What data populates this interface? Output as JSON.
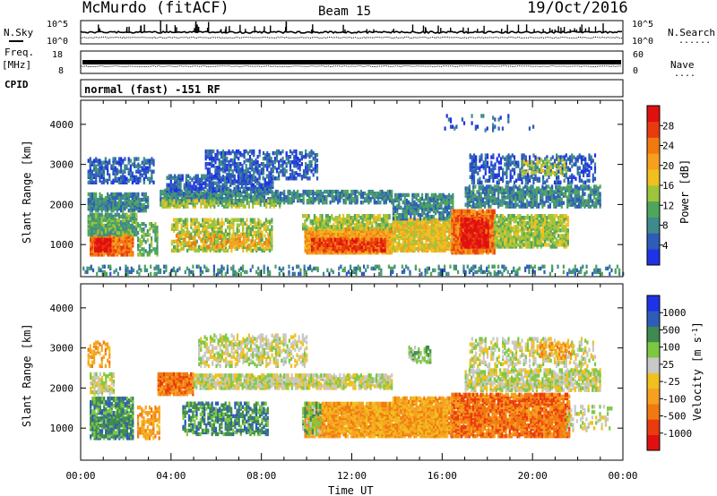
{
  "header": {
    "title": "McMurdo (fitACF)",
    "beam": "Beam 15",
    "date": "19/Oct/2016"
  },
  "strip_labels": {
    "nsky": "N.Sky",
    "nsearch": "N.Search",
    "freq": "Freq.",
    "mhz": "[MHz]",
    "nave": "Nave",
    "cpid": "CPID",
    "dots": "......",
    "dots_short": "...."
  },
  "strip_ticks": {
    "nsky_top": "10^5",
    "nsky_bottom": "10^0",
    "freq_top": "18",
    "freq_bottom": "8",
    "nave_top": "60",
    "nave_bottom": "0"
  },
  "cpid_text": "normal (fast) -151 RF",
  "xaxis": {
    "label": "Time UT",
    "ticks": [
      "00:00",
      "04:00",
      "08:00",
      "12:00",
      "16:00",
      "20:00",
      "00:00"
    ],
    "minor_per_hour": 1
  },
  "colors": {
    "power": [
      "#1f33e6",
      "#2e5cb8",
      "#3f8a8a",
      "#4fa65a",
      "#9ec43b",
      "#f0c020",
      "#f7a020",
      "#f07a10",
      "#ea3a10",
      "#e01010"
    ],
    "velocity": [
      "#e01010",
      "#ea3a10",
      "#f07a10",
      "#f7a020",
      "#f0c020",
      "#c8c8c8",
      "#7dc843",
      "#3f8a4f",
      "#2e5cb8",
      "#1f33e6"
    ]
  },
  "chart_data": [
    {
      "type": "heatmap",
      "name": "power",
      "ylabel": "Slant Range [km]",
      "ylim": [
        200,
        4600
      ],
      "yticks": [
        "1000",
        "2000",
        "3000",
        "4000"
      ],
      "xlim_hours": [
        0,
        24
      ],
      "colorbar": {
        "label": "Power [dB]",
        "ticks": [
          "4",
          "8",
          "12",
          "16",
          "20",
          "24",
          "28"
        ],
        "range": [
          0,
          32
        ]
      },
      "regions": [
        {
          "t0": 0.4,
          "t1": 2.3,
          "r0": 700,
          "r1": 1300,
          "lv": 7,
          "d": 0.9
        },
        {
          "t0": 0.6,
          "t1": 1.3,
          "r0": 800,
          "r1": 1100,
          "lv": 9,
          "d": 0.9
        },
        {
          "t0": 0.3,
          "t1": 2.5,
          "r0": 1200,
          "r1": 1700,
          "lv": 3,
          "d": 0.8
        },
        {
          "t0": 0.3,
          "t1": 3.0,
          "r0": 1800,
          "r1": 2250,
          "lv": 2,
          "d": 0.75
        },
        {
          "t0": 0.3,
          "t1": 3.2,
          "r0": 2500,
          "r1": 3100,
          "lv": 1,
          "d": 0.5
        },
        {
          "t0": 2.5,
          "t1": 3.4,
          "r0": 700,
          "r1": 1500,
          "lv": 3,
          "d": 0.45
        },
        {
          "t0": 3.5,
          "t1": 8.8,
          "r0": 2000,
          "r1": 2300,
          "lv": 2,
          "d": 0.8
        },
        {
          "t0": 3.5,
          "t1": 8.8,
          "r0": 1900,
          "r1": 2050,
          "lv": 4,
          "d": 0.5
        },
        {
          "t0": 3.7,
          "t1": 8.5,
          "r0": 2300,
          "r1": 2700,
          "lv": 1,
          "d": 0.55
        },
        {
          "t0": 4.0,
          "t1": 8.5,
          "r0": 800,
          "r1": 1600,
          "lv": 4,
          "d": 0.5
        },
        {
          "t0": 4.2,
          "t1": 8.3,
          "r0": 900,
          "r1": 1200,
          "lv": 6,
          "d": 0.3
        },
        {
          "t0": 5.5,
          "t1": 10.5,
          "r0": 2600,
          "r1": 3300,
          "lv": 1,
          "d": 0.45
        },
        {
          "t0": 8.8,
          "t1": 13.8,
          "r0": 2000,
          "r1": 2300,
          "lv": 2,
          "d": 0.6
        },
        {
          "t0": 9.9,
          "t1": 13.8,
          "r0": 750,
          "r1": 1350,
          "lv": 6,
          "d": 0.95
        },
        {
          "t0": 10.2,
          "t1": 13.5,
          "r0": 800,
          "r1": 1100,
          "lv": 8,
          "d": 0.75
        },
        {
          "t0": 9.8,
          "t1": 14.2,
          "r0": 1350,
          "r1": 1700,
          "lv": 4,
          "d": 0.6
        },
        {
          "t0": 13.8,
          "t1": 16.5,
          "r0": 800,
          "r1": 1600,
          "lv": 5,
          "d": 0.8
        },
        {
          "t0": 13.8,
          "t1": 16.5,
          "r0": 1600,
          "r1": 2200,
          "lv": 2,
          "d": 0.6
        },
        {
          "t0": 16.4,
          "t1": 18.3,
          "r0": 750,
          "r1": 1800,
          "lv": 7,
          "d": 0.95
        },
        {
          "t0": 16.8,
          "t1": 18.0,
          "r0": 900,
          "r1": 1600,
          "lv": 9,
          "d": 0.75
        },
        {
          "t0": 18.3,
          "t1": 21.6,
          "r0": 900,
          "r1": 1700,
          "lv": 4,
          "d": 0.7
        },
        {
          "t0": 17.0,
          "t1": 23.0,
          "r0": 1900,
          "r1": 2400,
          "lv": 2,
          "d": 0.6
        },
        {
          "t0": 17.2,
          "t1": 22.8,
          "r0": 2500,
          "r1": 3200,
          "lv": 1,
          "d": 0.35
        },
        {
          "t0": 19.5,
          "t1": 21.5,
          "r0": 2700,
          "r1": 3100,
          "lv": 4,
          "d": 0.35
        },
        {
          "t0": 16.0,
          "t1": 20.0,
          "r0": 3800,
          "r1": 4200,
          "lv": 1,
          "d": 0.05
        },
        {
          "t0": 0.0,
          "t1": 24.0,
          "r0": 220,
          "r1": 420,
          "lv": 2,
          "d": 0.25
        }
      ]
    },
    {
      "type": "heatmap",
      "name": "velocity",
      "ylabel": "Slant Range [km]",
      "ylim": [
        200,
        4600
      ],
      "yticks": [
        "1000",
        "2000",
        "3000",
        "4000"
      ],
      "xlim_hours": [
        0,
        24
      ],
      "colorbar": {
        "label": "Velocity [m s^-1]",
        "ticks": [
          "1000",
          "500",
          "100",
          "25",
          "-25",
          "-100",
          "-500",
          "-1000"
        ]
      },
      "regions": [
        {
          "t0": 0.4,
          "t1": 2.3,
          "r0": 700,
          "r1": 1700,
          "lv": 7,
          "d": 0.75
        },
        {
          "t0": 0.4,
          "t1": 1.5,
          "r0": 1800,
          "r1": 2300,
          "lv": 5,
          "d": 0.55
        },
        {
          "t0": 0.3,
          "t1": 1.3,
          "r0": 2500,
          "r1": 3100,
          "lv": 3,
          "d": 0.35
        },
        {
          "t0": 2.5,
          "t1": 3.5,
          "r0": 700,
          "r1": 1500,
          "lv": 3,
          "d": 0.45
        },
        {
          "t0": 3.4,
          "t1": 5.0,
          "r0": 1800,
          "r1": 2300,
          "lv": 2,
          "d": 0.9
        },
        {
          "t0": 5.0,
          "t1": 8.8,
          "r0": 1950,
          "r1": 2300,
          "lv": 5,
          "d": 0.8
        },
        {
          "t0": 5.2,
          "t1": 10.0,
          "r0": 2500,
          "r1": 3300,
          "lv": 5,
          "d": 0.4
        },
        {
          "t0": 4.5,
          "t1": 8.3,
          "r0": 800,
          "r1": 1600,
          "lv": 7,
          "d": 0.5
        },
        {
          "t0": 8.8,
          "t1": 13.8,
          "r0": 1950,
          "r1": 2300,
          "lv": 5,
          "d": 0.7
        },
        {
          "t0": 9.9,
          "t1": 13.8,
          "r0": 750,
          "r1": 1600,
          "lv": 3,
          "d": 0.9
        },
        {
          "t0": 9.8,
          "t1": 10.6,
          "r0": 800,
          "r1": 1600,
          "lv": 6,
          "d": 0.45
        },
        {
          "t0": 13.8,
          "t1": 16.5,
          "r0": 750,
          "r1": 1700,
          "lv": 3,
          "d": 0.85
        },
        {
          "t0": 16.4,
          "t1": 21.6,
          "r0": 750,
          "r1": 1800,
          "lv": 2,
          "d": 0.8
        },
        {
          "t0": 17.0,
          "t1": 23.0,
          "r0": 1900,
          "r1": 2400,
          "lv": 5,
          "d": 0.65
        },
        {
          "t0": 17.2,
          "t1": 22.8,
          "r0": 2500,
          "r1": 3200,
          "lv": 5,
          "d": 0.3
        },
        {
          "t0": 20.3,
          "t1": 21.8,
          "r0": 2700,
          "r1": 3100,
          "lv": 3,
          "d": 0.4
        },
        {
          "t0": 21.5,
          "t1": 23.5,
          "r0": 900,
          "r1": 1500,
          "lv": 5,
          "d": 0.25
        },
        {
          "t0": 14.5,
          "t1": 15.5,
          "r0": 2600,
          "r1": 3000,
          "lv": 6,
          "d": 0.4
        }
      ]
    }
  ]
}
